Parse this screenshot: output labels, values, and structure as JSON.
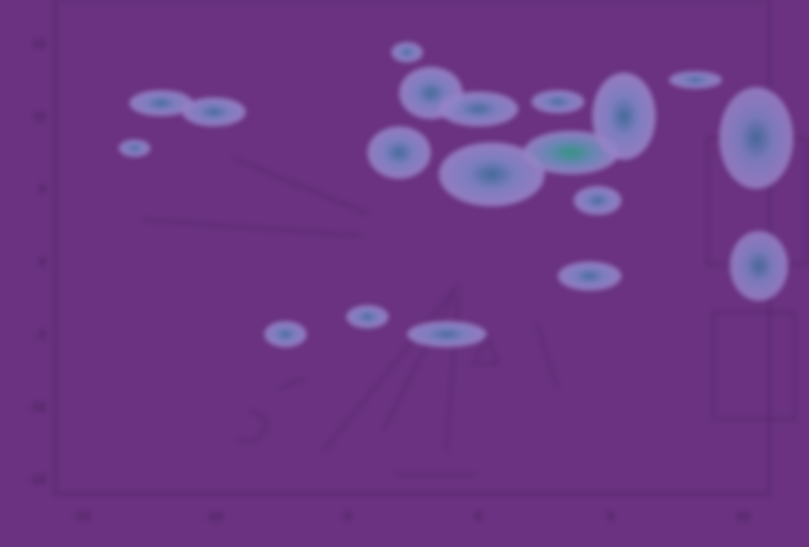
{
  "colors": {
    "background": "#6a3280",
    "plot_border": "#4a2060",
    "cluster_fill": "#8f7cc4",
    "cluster_core": "#3f6f9a",
    "cluster_hot": "#2e9e82",
    "leader_line": "#4a2060"
  },
  "chart_data": {
    "type": "scatter",
    "title": "",
    "xlabel": "",
    "ylabel": "",
    "xlim": [
      -16,
      11
    ],
    "ylim": [
      -16,
      18
    ],
    "x_ticks": [
      -15,
      -10,
      -5,
      0,
      5,
      10
    ],
    "y_ticks": [
      -15,
      -10,
      -5,
      0,
      5,
      10,
      15
    ],
    "x_tick_labels": [
      "-15",
      "-10",
      "-5",
      "0",
      "5",
      "10"
    ],
    "y_tick_labels": [
      "-15",
      "-10",
      "-5",
      "0",
      "5",
      "10",
      "15"
    ],
    "grid": false,
    "legend": "none",
    "clusters": [
      {
        "x": -12.0,
        "y": 10.9,
        "rx": 1.2,
        "ry": 0.9
      },
      {
        "x": -10.0,
        "y": 10.3,
        "rx": 1.2,
        "ry": 1.0
      },
      {
        "x": -13.0,
        "y": 7.8,
        "rx": 0.6,
        "ry": 0.6
      },
      {
        "x": -2.7,
        "y": 14.4,
        "rx": 0.6,
        "ry": 0.7
      },
      {
        "x": -1.8,
        "y": 11.6,
        "rx": 1.2,
        "ry": 1.8
      },
      {
        "x": 0.0,
        "y": 10.5,
        "rx": 1.5,
        "ry": 1.2
      },
      {
        "x": 3.0,
        "y": 11.0,
        "rx": 1.0,
        "ry": 0.8
      },
      {
        "x": -3.0,
        "y": 7.5,
        "rx": 1.2,
        "ry": 1.8
      },
      {
        "x": 0.5,
        "y": 6.0,
        "rx": 2.0,
        "ry": 2.2
      },
      {
        "x": 3.5,
        "y": 7.5,
        "rx": 1.8,
        "ry": 1.5
      },
      {
        "x": 5.5,
        "y": 10.0,
        "rx": 1.2,
        "ry": 3.0
      },
      {
        "x": 8.2,
        "y": 12.5,
        "rx": 1.0,
        "ry": 0.6
      },
      {
        "x": 4.5,
        "y": 4.2,
        "rx": 0.9,
        "ry": 1.0
      },
      {
        "x": 4.2,
        "y": -1.0,
        "rx": 1.2,
        "ry": 1.0
      },
      {
        "x": -4.2,
        "y": -3.8,
        "rx": 0.8,
        "ry": 0.8
      },
      {
        "x": -7.3,
        "y": -5.0,
        "rx": 0.8,
        "ry": 0.9
      },
      {
        "x": -1.2,
        "y": -5.0,
        "rx": 1.5,
        "ry": 0.9
      }
    ],
    "insets": [
      {
        "x": 10.5,
        "y": 8.5,
        "rx": 1.4,
        "ry": 3.5
      },
      {
        "x": 10.6,
        "y": -0.3,
        "rx": 1.1,
        "ry": 2.4
      }
    ]
  }
}
